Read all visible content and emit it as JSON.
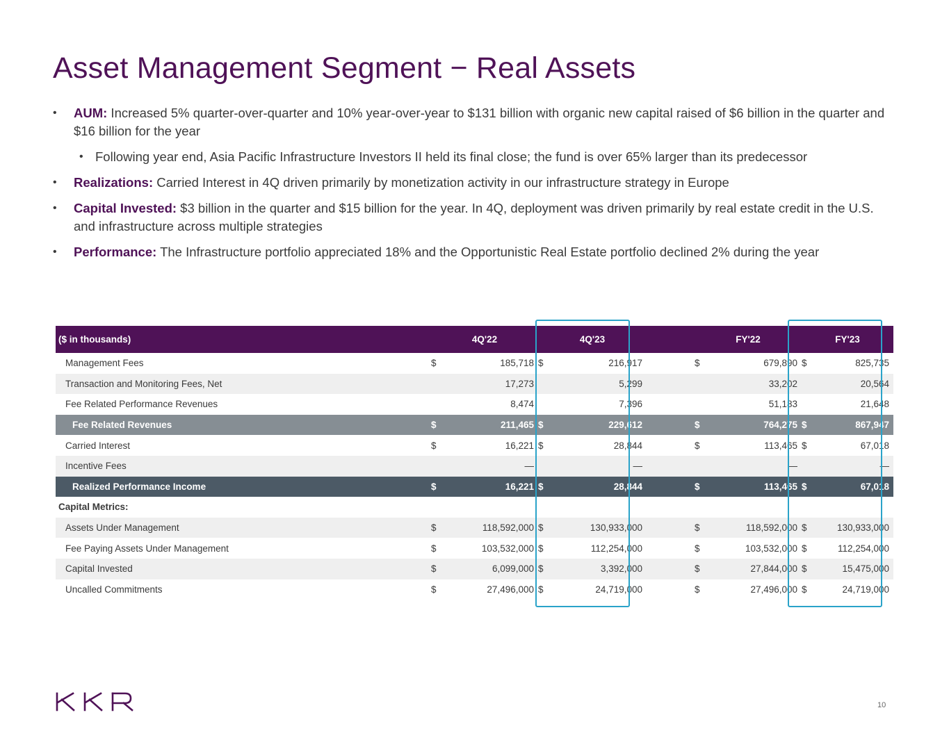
{
  "title": "Asset Management Segment − Real Assets",
  "bullet_marker": "•",
  "bullets": {
    "aum": {
      "label": "AUM:",
      "text": " Increased 5% quarter-over-quarter and 10% year-over-year to $131 billion with organic new capital raised of $6 billion in the quarter and $16 billion for the year"
    },
    "aum_sub": {
      "text": "Following year end, Asia Pacific Infrastructure Investors II held its final close; the fund is over 65% larger than its predecessor"
    },
    "realizations": {
      "label": "Realizations:",
      "text": " Carried Interest in 4Q driven primarily by monetization activity in our infrastructure strategy in Europe"
    },
    "capital": {
      "label": "Capital Invested:",
      "text": " $3 billion in the quarter and $15 billion for the year. In 4Q, deployment was driven primarily by real estate credit in the U.S. and infrastructure across multiple strategies"
    },
    "performance": {
      "label": "Performance:",
      "text": " The Infrastructure portfolio appreciated 18% and the Opportunistic Real Estate portfolio declined 2% during the year"
    }
  },
  "table": {
    "header": {
      "label": "($ in thousands)",
      "c1": "4Q'22",
      "c2": "4Q'23",
      "c3": "FY'22",
      "c4": "FY'23"
    },
    "currency": "$",
    "rows": [
      {
        "label": "Management Fees",
        "c1": "185,718",
        "c2": "216,917",
        "c3": "679,890",
        "c4": "825,735"
      },
      {
        "label": "Transaction and Monitoring Fees, Net",
        "c1": "17,273",
        "c2": "5,299",
        "c3": "33,202",
        "c4": "20,564"
      },
      {
        "label": "Fee Related Performance Revenues",
        "c1": "8,474",
        "c2": "7,396",
        "c3": "51,183",
        "c4": "21,648"
      },
      {
        "label": "Fee Related Revenues",
        "c1": "211,465",
        "c2": "229,612",
        "c3": "764,275",
        "c4": "867,947"
      },
      {
        "label": "Carried Interest",
        "c1": "16,221",
        "c2": "28,844",
        "c3": "113,465",
        "c4": "67,018"
      },
      {
        "label": "Incentive Fees",
        "c1": "—",
        "c2": "—",
        "c3": "—",
        "c4": "—"
      },
      {
        "label": "Realized Performance Income",
        "c1": "16,221",
        "c2": "28,844",
        "c3": "113,465",
        "c4": "67,018"
      },
      {
        "label": "Capital Metrics:"
      },
      {
        "label": "Assets Under Management",
        "c1": "118,592,000",
        "c2": "130,933,000",
        "c3": "118,592,000",
        "c4": "130,933,000"
      },
      {
        "label": "Fee Paying Assets Under Management",
        "c1": "103,532,000",
        "c2": "112,254,000",
        "c3": "103,532,000",
        "c4": "112,254,000"
      },
      {
        "label": "Capital Invested",
        "c1": "6,099,000",
        "c2": "3,392,000",
        "c3": "27,844,000",
        "c4": "15,475,000"
      },
      {
        "label": "Uncalled Commitments",
        "c1": "27,496,000",
        "c2": "24,719,000",
        "c3": "27,496,000",
        "c4": "24,719,000"
      }
    ]
  },
  "logo": {
    "text": "KKR",
    "color": "#4f1257"
  },
  "page_number": "10",
  "colors": {
    "brand": "#4f1257",
    "highlight": "#2aa3c9",
    "sum_row": "#868e94",
    "dark_row": "#4c5a66"
  }
}
